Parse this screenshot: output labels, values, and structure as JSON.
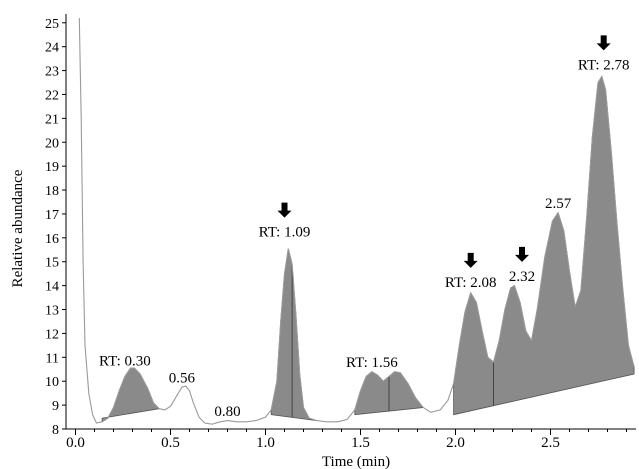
{
  "chart_data": {
    "type": "area",
    "title": "",
    "xlabel": "Time (min)",
    "ylabel": "Relative abundance",
    "xlim": [
      -0.05,
      2.95
    ],
    "ylim": [
      8,
      25.2
    ],
    "x_ticks": [
      0.0,
      0.5,
      1.0,
      1.5,
      2.0,
      2.5
    ],
    "x_tick_labels": [
      "0.0",
      "0.5",
      "1.0",
      "1.5",
      "2.0",
      "2.5"
    ],
    "y_ticks": [
      8,
      9,
      10,
      11,
      12,
      13,
      14,
      15,
      16,
      17,
      18,
      19,
      20,
      21,
      22,
      23,
      24,
      25
    ],
    "y_tick_labels": [
      "8",
      "9",
      "10",
      "11",
      "12",
      "13",
      "14",
      "15",
      "16",
      "17",
      "18",
      "19",
      "20",
      "21",
      "22",
      "23",
      "24",
      "25"
    ],
    "grid": false,
    "colors": {
      "trace": "#9a9a9a",
      "fill": "#8a8a8a",
      "fill_edge": "#555555"
    },
    "series": [
      {
        "values": [
          [
            0.02,
            25.5
          ],
          [
            0.03,
            21
          ],
          [
            0.04,
            15
          ],
          [
            0.05,
            11.5
          ],
          [
            0.07,
            9.5
          ],
          [
            0.09,
            8.6
          ],
          [
            0.11,
            8.25
          ],
          [
            0.14,
            8.3
          ],
          [
            0.17,
            8.45
          ],
          [
            0.2,
            8.9
          ],
          [
            0.23,
            9.6
          ],
          [
            0.26,
            10.2
          ],
          [
            0.29,
            10.55
          ],
          [
            0.31,
            10.55
          ],
          [
            0.34,
            10.3
          ],
          [
            0.38,
            9.7
          ],
          [
            0.41,
            9.1
          ],
          [
            0.44,
            8.85
          ],
          [
            0.47,
            8.8
          ],
          [
            0.5,
            8.95
          ],
          [
            0.53,
            9.35
          ],
          [
            0.56,
            9.75
          ],
          [
            0.58,
            9.8
          ],
          [
            0.6,
            9.6
          ],
          [
            0.62,
            9.1
          ],
          [
            0.65,
            8.5
          ],
          [
            0.68,
            8.25
          ],
          [
            0.72,
            8.2
          ],
          [
            0.76,
            8.3
          ],
          [
            0.8,
            8.35
          ],
          [
            0.85,
            8.3
          ],
          [
            0.9,
            8.3
          ],
          [
            0.95,
            8.35
          ],
          [
            1.0,
            8.5
          ],
          [
            1.03,
            8.8
          ],
          [
            1.06,
            10.0
          ],
          [
            1.08,
            12.5
          ],
          [
            1.1,
            14.5
          ],
          [
            1.12,
            15.55
          ],
          [
            1.14,
            14.9
          ],
          [
            1.16,
            12.8
          ],
          [
            1.18,
            10.3
          ],
          [
            1.2,
            8.9
          ],
          [
            1.23,
            8.45
          ],
          [
            1.27,
            8.35
          ],
          [
            1.32,
            8.3
          ],
          [
            1.38,
            8.3
          ],
          [
            1.43,
            8.4
          ],
          [
            1.47,
            8.8
          ],
          [
            1.5,
            9.6
          ],
          [
            1.53,
            10.2
          ],
          [
            1.56,
            10.4
          ],
          [
            1.59,
            10.25
          ],
          [
            1.62,
            10.0
          ],
          [
            1.65,
            10.2
          ],
          [
            1.68,
            10.4
          ],
          [
            1.71,
            10.35
          ],
          [
            1.75,
            9.9
          ],
          [
            1.79,
            9.3
          ],
          [
            1.83,
            8.9
          ],
          [
            1.87,
            8.7
          ],
          [
            1.92,
            8.8
          ],
          [
            1.96,
            9.2
          ],
          [
            1.99,
            9.9
          ],
          [
            2.02,
            11.5
          ],
          [
            2.05,
            12.9
          ],
          [
            2.08,
            13.7
          ],
          [
            2.11,
            13.3
          ],
          [
            2.14,
            12.1
          ],
          [
            2.17,
            11.0
          ],
          [
            2.2,
            10.8
          ],
          [
            2.23,
            11.7
          ],
          [
            2.26,
            13.0
          ],
          [
            2.29,
            13.9
          ],
          [
            2.31,
            14.0
          ],
          [
            2.34,
            13.3
          ],
          [
            2.37,
            12.1
          ],
          [
            2.4,
            11.7
          ],
          [
            2.43,
            13.0
          ],
          [
            2.47,
            15.2
          ],
          [
            2.51,
            16.7
          ],
          [
            2.54,
            17.05
          ],
          [
            2.57,
            16.3
          ],
          [
            2.6,
            14.6
          ],
          [
            2.63,
            13.1
          ],
          [
            2.66,
            13.8
          ],
          [
            2.69,
            16.8
          ],
          [
            2.72,
            20.2
          ],
          [
            2.75,
            22.5
          ],
          [
            2.77,
            22.75
          ],
          [
            2.79,
            22.2
          ],
          [
            2.82,
            19.6
          ],
          [
            2.85,
            16.6
          ],
          [
            2.88,
            13.9
          ],
          [
            2.91,
            11.5
          ],
          [
            2.94,
            10.6
          ]
        ]
      }
    ],
    "shaded_peaks": [
      {
        "from": 0.14,
        "to": 0.44,
        "baseline": [
          8.45,
          8.85
        ]
      },
      {
        "from": 1.03,
        "to": 1.27,
        "baseline": [
          8.6,
          8.35
        ]
      },
      {
        "from": 1.47,
        "to": 1.83,
        "baseline": [
          8.6,
          8.9
        ]
      },
      {
        "from": 1.99,
        "to": 2.94,
        "baseline": [
          8.6,
          10.3
        ]
      }
    ],
    "peak_dividers": [
      1.14,
      1.65,
      2.2
    ],
    "annotations": [
      {
        "text": "RT: 0.30",
        "x": 0.26,
        "y": 10.65,
        "arrow": false
      },
      {
        "text": "0.56",
        "x": 0.56,
        "y": 9.95,
        "arrow": false
      },
      {
        "text": "0.80",
        "x": 0.8,
        "y": 8.55,
        "arrow": false
      },
      {
        "text": "RT: 1.09",
        "x": 1.1,
        "y": 16.05,
        "arrow": true
      },
      {
        "text": "RT: 1.56",
        "x": 1.56,
        "y": 10.6,
        "arrow": false
      },
      {
        "text": "RT: 2.08",
        "x": 2.08,
        "y": 13.95,
        "arrow": true
      },
      {
        "text": "2.32",
        "x": 2.35,
        "y": 14.2,
        "arrow": true
      },
      {
        "text": "2.57",
        "x": 2.54,
        "y": 17.25,
        "arrow": false
      },
      {
        "text": "RT: 2.78",
        "x": 2.78,
        "y": 23.05,
        "arrow": true
      }
    ]
  }
}
